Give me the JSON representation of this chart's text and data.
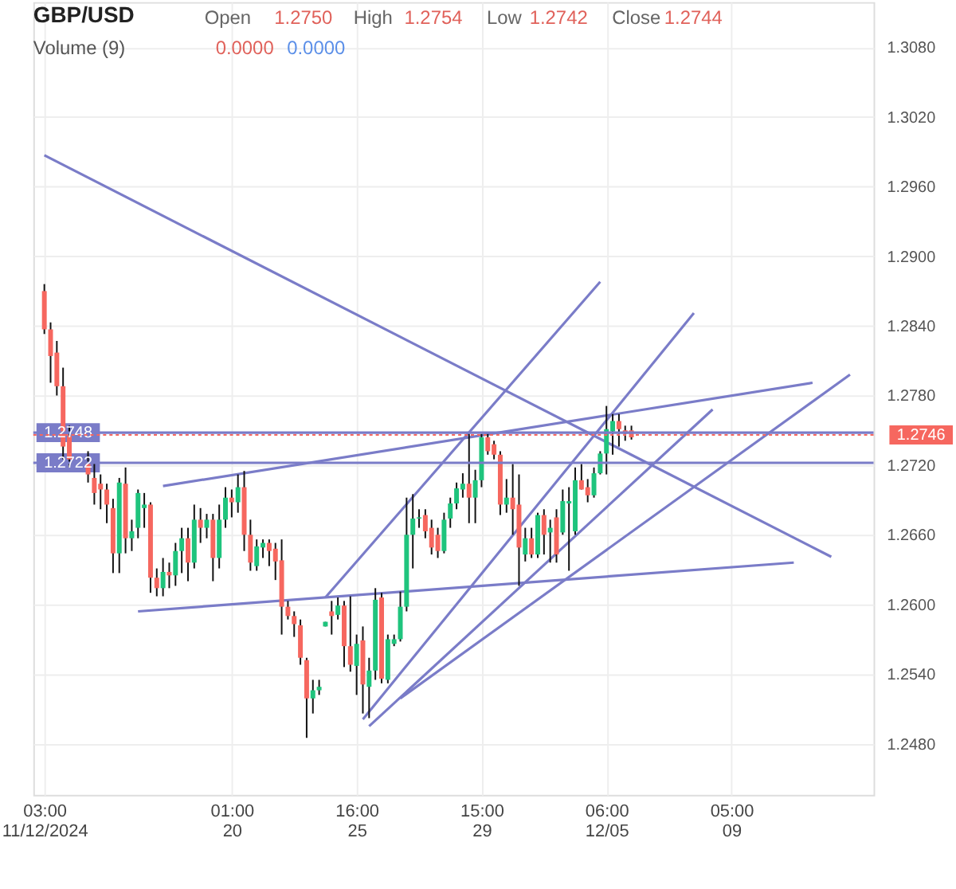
{
  "chart_data": {
    "type": "candlestick",
    "title": "GBP/USD",
    "annotations": [
      "Open",
      "1.2750",
      "High",
      "1.2754",
      "Low",
      "1.2742",
      "Close",
      "1.2744",
      "Volume (9)",
      "0.0000",
      "0.0000"
    ],
    "colors": [
      "#f6675f",
      "#f6675f",
      "#f6675f",
      "#f6675f",
      "#f6675f",
      null,
      null,
      "#f6675f",
      "#f6675f",
      "#f6675f",
      "#f6675f",
      "#f6675f",
      "#1fc47d",
      "#f6675f",
      "#1fc47d",
      "#1fc47d",
      "#1fc47d",
      "#f6675f",
      "#f6675f",
      "#1fc47d",
      "#f6675f",
      "#1fc47d",
      "#1fc47d",
      "#f6675f",
      "#1fc47d",
      "#f6675f",
      "#1fc47d",
      "#f6675f",
      "#1fc47d",
      "#1fc47d",
      "#f6675f",
      "#1fc47d",
      "#f6675f",
      "#f6675f",
      "#1fc47d",
      "#1fc47d",
      "#f6675f",
      "#f6675f",
      "#f6675f",
      "#f6675f",
      "#f6675f",
      "#f6675f",
      "#f6675f",
      "#1fc47d",
      "#1fc47d",
      "#1fc47d",
      "#f6675f",
      "#1fc47d",
      "#f6675f",
      "#f6675f",
      "#1fc47d",
      "#f6675f",
      "#1fc47d",
      "#1fc47d",
      "#f6675f",
      "#1fc47d",
      "#1fc47d",
      "#1fc47d",
      "#1fc47d",
      "#1fc47d",
      "#1fc47d",
      "#f6675f",
      "#f6675f",
      "#f6675f",
      "#1fc47d",
      "#1fc47d",
      "#1fc47d",
      "#1fc47d",
      "#f6675f",
      "#1fc47d",
      "#1fc47d",
      "#f6675f",
      "#f6675f",
      "#f6675f",
      "#1fc47d",
      "#f6675f",
      "#f6675f",
      "#1fc47d",
      "#f6675f",
      "#1fc47d",
      "#f6675f",
      "#1fc47d",
      "#f6675f",
      "#1fc47d",
      "#1fc47d",
      "#1fc47d",
      "#f6675f",
      "#f6675f",
      "#1fc47d",
      "#1fc47d",
      "#1fc47d",
      "#1fc47d",
      "#f6675f",
      "#f6675f",
      "#f6675f",
      null,
      null,
      null,
      null,
      null,
      null,
      null,
      null,
      null,
      null,
      null,
      null,
      null,
      null,
      null,
      null,
      null,
      null,
      null,
      null,
      null,
      null,
      null,
      null,
      null,
      null,
      null,
      null,
      null,
      null,
      null,
      null,
      null,
      null,
      null,
      null,
      null
    ],
    "categories": [
      "03:00 11/12/2024",
      null,
      null,
      null,
      null,
      null,
      null,
      null,
      null,
      null,
      null,
      null,
      null,
      null,
      null,
      null,
      null,
      null,
      null,
      null,
      null,
      null,
      null,
      null,
      null,
      null,
      null,
      null,
      null,
      null,
      "01:00 20",
      null,
      null,
      null,
      null,
      null,
      null,
      null,
      null,
      null,
      null,
      null,
      null,
      null,
      null,
      null,
      null,
      null,
      null,
      null,
      "16:00 25",
      null,
      null,
      null,
      null,
      null,
      null,
      null,
      null,
      null,
      null,
      null,
      null,
      null,
      null,
      null,
      null,
      null,
      null,
      null,
      "15:00 29",
      null,
      null,
      null,
      null,
      null,
      null,
      null,
      null,
      null,
      null,
      null,
      null,
      null,
      null,
      null,
      null,
      null,
      null,
      null,
      "06:00 12/05",
      null,
      null,
      null,
      null,
      null,
      null,
      null,
      null,
      null,
      null,
      null,
      null,
      null,
      null,
      null,
      null,
      null,
      null,
      null,
      "05:00 09",
      null,
      null,
      null,
      null,
      null,
      null,
      null,
      null,
      null,
      null,
      null,
      null,
      null,
      null,
      null,
      null,
      null,
      null,
      null,
      null,
      null
    ],
    "ohlc": [
      [
        1.287,
        1.2876,
        1.2833,
        1.2837
      ],
      [
        1.2837,
        1.2843,
        1.2791,
        1.2814
      ],
      [
        1.2817,
        1.2827,
        1.278,
        1.2788
      ],
      [
        1.2788,
        1.2804,
        1.2725,
        1.2736
      ],
      [
        1.2745,
        1.2754,
        1.2718,
        1.2725
      ],
      null,
      null,
      [
        1.2722,
        1.2732,
        1.2705,
        1.2712
      ],
      [
        1.2709,
        1.2722,
        1.2686,
        1.2696
      ],
      [
        1.2704,
        1.2712,
        1.2682,
        1.2699
      ],
      [
        1.2699,
        1.2704,
        1.267,
        1.2686
      ],
      [
        1.2683,
        1.2691,
        1.2627,
        1.2644
      ],
      [
        1.2644,
        1.2709,
        1.2627,
        1.2705
      ],
      [
        1.2704,
        1.2718,
        1.2644,
        1.2657
      ],
      [
        1.2657,
        1.2673,
        1.2646,
        1.2663
      ],
      [
        1.2666,
        1.2699,
        1.2657,
        1.2696
      ],
      [
        1.2683,
        1.2696,
        1.2666,
        1.2686
      ],
      [
        1.2686,
        1.2688,
        1.261,
        1.2623
      ],
      [
        1.2623,
        1.2631,
        1.2607,
        1.2614
      ],
      [
        1.2614,
        1.264,
        1.2607,
        1.2628
      ],
      [
        1.2628,
        1.2636,
        1.2614,
        1.2625
      ],
      [
        1.2625,
        1.2653,
        1.2616,
        1.2646
      ],
      [
        1.2646,
        1.2666,
        1.2627,
        1.2657
      ],
      [
        1.2657,
        1.2666,
        1.262,
        1.2636
      ],
      [
        1.2636,
        1.2686,
        1.2631,
        1.2673
      ],
      [
        1.2673,
        1.2683,
        1.2653,
        1.2666
      ],
      [
        1.2666,
        1.2678,
        1.2657,
        1.2673
      ],
      [
        1.2673,
        1.2678,
        1.262,
        1.264
      ],
      [
        1.264,
        1.2686,
        1.2631,
        1.2673
      ],
      [
        1.2673,
        1.2701,
        1.2666,
        1.2692
      ],
      [
        1.2692,
        1.2699,
        1.2675,
        1.2688
      ],
      [
        1.2688,
        1.2712,
        1.2679,
        1.2701
      ],
      [
        1.2701,
        1.2715,
        1.2646,
        1.266
      ],
      [
        1.266,
        1.2673,
        1.2629,
        1.2636
      ],
      [
        1.2633,
        1.2656,
        1.2629,
        1.265
      ],
      [
        1.2649,
        1.2656,
        1.264,
        1.2653
      ],
      [
        1.2653,
        1.2656,
        1.2633,
        1.2646
      ],
      [
        1.2648,
        1.2653,
        1.2621,
        1.2637
      ],
      [
        1.2638,
        1.2656,
        1.2574,
        1.2598
      ],
      [
        1.2598,
        1.2603,
        1.2587,
        1.259
      ],
      [
        1.259,
        1.2594,
        1.2572,
        1.2583
      ],
      [
        1.2582,
        1.2587,
        1.2548,
        1.2554
      ],
      [
        1.2552,
        1.2554,
        1.2485,
        1.2519
      ],
      [
        1.2519,
        1.2535,
        1.2506,
        1.2526
      ],
      [
        1.2526,
        1.2535,
        1.2522,
        1.2529
      ],
      [
        1.2581,
        1.2585,
        1.2581,
        1.2585
      ],
      [
        1.2594,
        1.2603,
        1.2574,
        1.259
      ],
      [
        1.2591,
        1.2606,
        1.2587,
        1.2599
      ],
      [
        1.2599,
        1.2603,
        1.2546,
        1.2564
      ],
      [
        1.2564,
        1.2607,
        1.2542,
        1.2548
      ],
      [
        1.2547,
        1.2574,
        1.2522,
        1.2566
      ],
      [
        1.2569,
        1.2581,
        1.2506,
        1.2531
      ],
      [
        1.2529,
        1.2554,
        1.2502,
        1.2543
      ],
      [
        1.2543,
        1.2614,
        1.2535,
        1.2604
      ],
      [
        1.2606,
        1.261,
        1.2532,
        1.2536
      ],
      [
        1.2535,
        1.2574,
        1.2532,
        1.257
      ],
      [
        1.2566,
        1.2574,
        1.2564,
        1.257
      ],
      [
        1.257,
        1.2611,
        1.2568,
        1.2598
      ],
      [
        1.2598,
        1.2692,
        1.2594,
        1.266
      ],
      [
        1.266,
        1.2695,
        1.2631,
        1.2674
      ],
      [
        1.2674,
        1.2682,
        1.2666,
        1.2675
      ],
      [
        1.2677,
        1.2682,
        1.2657,
        1.2663
      ],
      [
        1.2666,
        1.2673,
        1.2643,
        1.2649
      ],
      [
        1.266,
        1.2666,
        1.264,
        1.2646
      ],
      [
        1.2646,
        1.2679,
        1.2644,
        1.2673
      ],
      [
        1.2674,
        1.2692,
        1.2666,
        1.2687
      ],
      [
        1.2687,
        1.2705,
        1.2682,
        1.27
      ],
      [
        1.2699,
        1.2713,
        1.2692,
        1.2704
      ],
      [
        1.2704,
        1.2747,
        1.267,
        1.2692
      ],
      [
        1.2692,
        1.2716,
        1.267,
        1.2707
      ],
      [
        1.2707,
        1.2747,
        1.2701,
        1.2744
      ],
      [
        1.2744,
        1.2747,
        1.2729,
        1.2732
      ],
      [
        1.2738,
        1.2741,
        1.2725,
        1.2729
      ],
      [
        1.2729,
        1.2732,
        1.2677,
        1.2686
      ],
      [
        1.2686,
        1.2708,
        1.2679,
        1.2692
      ],
      [
        1.2692,
        1.2721,
        1.266,
        1.2682
      ],
      [
        1.2686,
        1.2712,
        1.2616,
        1.2649
      ],
      [
        1.2643,
        1.2666,
        1.2637,
        1.2657
      ],
      [
        1.2657,
        1.2666,
        1.264,
        1.2643
      ],
      [
        1.2643,
        1.2679,
        1.264,
        1.2677
      ],
      [
        1.2677,
        1.2682,
        1.2643,
        1.266
      ],
      [
        1.2662,
        1.2673,
        1.2636,
        1.2666
      ],
      [
        1.2675,
        1.2682,
        1.2636,
        1.2643
      ],
      [
        1.2662,
        1.2699,
        1.266,
        1.2689
      ],
      [
        1.2687,
        1.2701,
        1.2629,
        1.2689
      ],
      [
        1.2663,
        1.2718,
        1.266,
        1.2707
      ],
      [
        1.2707,
        1.2721,
        1.2699,
        1.2699
      ],
      [
        1.2701,
        1.2708,
        1.2688,
        1.2694
      ],
      [
        1.2694,
        1.2718,
        1.2692,
        1.2713
      ],
      [
        1.2713,
        1.2732,
        1.2712,
        1.273
      ],
      [
        1.273,
        1.2771,
        1.2712,
        1.2751
      ],
      [
        1.2749,
        1.2764,
        1.2729,
        1.2758
      ],
      [
        1.2758,
        1.2764,
        1.2736,
        1.2751
      ],
      [
        1.275,
        1.2754,
        1.2741,
        1.2747
      ],
      [
        1.275,
        1.2754,
        1.2742,
        1.2744
      ],
      null,
      null,
      null,
      null,
      null,
      null,
      null,
      null,
      null,
      null,
      null,
      null,
      null,
      null,
      null,
      null,
      null,
      null,
      null,
      null,
      null,
      null,
      null,
      null,
      null,
      null,
      null,
      null,
      null,
      null,
      null,
      null,
      null,
      null,
      null,
      null,
      null
    ],
    "series": [
      {
        "type": "line",
        "color": "#7a7cc8",
        "values": [
          1.2987,
          null,
          null,
          null,
          null,
          null,
          null,
          null,
          null,
          null,
          null,
          null,
          null,
          null,
          null,
          null,
          null,
          null,
          null,
          null,
          null,
          null,
          null,
          null,
          null,
          null,
          null,
          null,
          null,
          null,
          null,
          null,
          null,
          null,
          null,
          null,
          null,
          null,
          null,
          null,
          null,
          null,
          null,
          null,
          null,
          null,
          null,
          null,
          null,
          null,
          null,
          null,
          null,
          null,
          null,
          null,
          null,
          null,
          null,
          null,
          null,
          null,
          null,
          null,
          null,
          null,
          null,
          null,
          null,
          null,
          null,
          null,
          null,
          null,
          null,
          null,
          null,
          null,
          null,
          null,
          null,
          null,
          null,
          null,
          null,
          null,
          null,
          null,
          null,
          null,
          null,
          null,
          null,
          null,
          null,
          null,
          null,
          null,
          null,
          null,
          null,
          null,
          null,
          null,
          null,
          null,
          null,
          null,
          null,
          null,
          null,
          null,
          null,
          null,
          null,
          null,
          null,
          null,
          null,
          null,
          null,
          null,
          null,
          null,
          null,
          null,
          1.2641,
          null,
          null,
          null,
          null,
          null
        ]
      },
      {
        "type": "line",
        "color": "#7a7cc8",
        "values": [
          null,
          null,
          null,
          null,
          null,
          null,
          null,
          null,
          null,
          null,
          null,
          null,
          null,
          null,
          null,
          null,
          null,
          null,
          null,
          1.2702,
          null,
          null,
          null,
          null,
          null,
          null,
          null,
          null,
          null,
          null,
          null,
          null,
          null,
          null,
          null,
          null,
          null,
          null,
          null,
          null,
          null,
          null,
          null,
          null,
          null,
          null,
          null,
          null,
          null,
          null,
          null,
          null,
          null,
          null,
          null,
          null,
          null,
          null,
          null,
          null,
          null,
          null,
          null,
          null,
          null,
          null,
          null,
          null,
          null,
          null,
          null,
          null,
          null,
          null,
          null,
          null,
          null,
          null,
          null,
          null,
          null,
          null,
          null,
          null,
          null,
          null,
          null,
          null,
          null,
          null,
          null,
          null,
          null,
          null,
          null,
          null,
          null,
          null,
          null,
          null,
          null,
          null,
          null,
          null,
          null,
          null,
          null,
          null,
          null,
          null,
          null,
          null,
          null,
          null,
          null,
          null,
          null,
          null,
          null,
          null,
          null,
          null,
          null,
          1.2791,
          null,
          null,
          null,
          null,
          null,
          null,
          null,
          null
        ]
      },
      {
        "type": "line",
        "color": "#7a7cc8",
        "values": [
          null,
          null,
          null,
          null,
          null,
          null,
          null,
          null,
          null,
          null,
          null,
          null,
          null,
          null,
          null,
          1.2594,
          null,
          null,
          null,
          null,
          null,
          null,
          null,
          null,
          null,
          null,
          null,
          null,
          null,
          null,
          null,
          null,
          null,
          null,
          null,
          null,
          null,
          null,
          null,
          null,
          null,
          null,
          null,
          null,
          null,
          null,
          null,
          null,
          null,
          null,
          null,
          null,
          null,
          null,
          null,
          null,
          null,
          null,
          null,
          null,
          null,
          null,
          null,
          null,
          null,
          null,
          null,
          null,
          null,
          null,
          null,
          null,
          null,
          null,
          null,
          null,
          null,
          null,
          null,
          null,
          null,
          null,
          null,
          null,
          null,
          null,
          null,
          null,
          null,
          null,
          null,
          null,
          null,
          null,
          null,
          null,
          null,
          null,
          null,
          null,
          null,
          null,
          null,
          null,
          null,
          null,
          null,
          null,
          null,
          null,
          null,
          null,
          null,
          null,
          null,
          null,
          null,
          null,
          null,
          null,
          1.2636,
          null,
          null,
          null,
          null,
          null,
          null,
          null,
          null,
          null,
          null,
          null
        ]
      },
      {
        "type": "line",
        "color": "#7a7cc8",
        "values": [
          null,
          null,
          null,
          null,
          null,
          null,
          null,
          null,
          null,
          null,
          null,
          null,
          null,
          null,
          null,
          null,
          null,
          null,
          null,
          null,
          null,
          null,
          null,
          null,
          null,
          null,
          null,
          null,
          null,
          null,
          null,
          null,
          null,
          null,
          null,
          null,
          null,
          null,
          null,
          null,
          null,
          null,
          null,
          null,
          null,
          1.2606,
          null,
          null,
          null,
          null,
          null,
          null,
          null,
          null,
          null,
          null,
          null,
          null,
          null,
          null,
          null,
          null,
          null,
          null,
          null,
          null,
          null,
          null,
          null,
          null,
          null,
          null,
          null,
          null,
          null,
          null,
          null,
          null,
          null,
          null,
          null,
          null,
          null,
          null,
          null,
          null,
          null,
          null,
          null,
          1.2878,
          null,
          null,
          null,
          null,
          null,
          null,
          null,
          null,
          null,
          null,
          null,
          null,
          null,
          null,
          null,
          null,
          null,
          null,
          null,
          null,
          null,
          null,
          null,
          null,
          null,
          null,
          null,
          null,
          null,
          null,
          null,
          null,
          null,
          null,
          null,
          null,
          null,
          null,
          null,
          null,
          null,
          null
        ]
      },
      {
        "type": "line",
        "color": "#7a7cc8",
        "values": [
          null,
          null,
          null,
          null,
          null,
          null,
          null,
          null,
          null,
          null,
          null,
          null,
          null,
          null,
          null,
          null,
          null,
          null,
          null,
          null,
          null,
          null,
          null,
          null,
          null,
          null,
          null,
          null,
          null,
          null,
          null,
          null,
          null,
          null,
          null,
          null,
          null,
          null,
          null,
          null,
          null,
          null,
          null,
          null,
          null,
          null,
          null,
          null,
          null,
          null,
          null,
          1.2501,
          null,
          null,
          null,
          null,
          null,
          null,
          null,
          null,
          null,
          null,
          null,
          null,
          null,
          null,
          null,
          null,
          null,
          null,
          null,
          null,
          null,
          null,
          null,
          null,
          null,
          null,
          null,
          null,
          null,
          null,
          null,
          null,
          null,
          null,
          null,
          null,
          null,
          null,
          null,
          null,
          null,
          null,
          null,
          null,
          null,
          null,
          null,
          null,
          null,
          null,
          null,
          null,
          1.2851,
          null,
          null,
          null,
          null,
          null,
          null,
          null,
          null,
          null,
          null,
          null,
          null,
          null,
          null,
          null,
          null,
          null,
          null,
          null,
          null,
          null,
          null,
          null,
          null,
          null,
          null,
          null
        ]
      },
      {
        "type": "line",
        "color": "#7a7cc8",
        "values": [
          null,
          null,
          null,
          null,
          null,
          null,
          null,
          null,
          null,
          null,
          null,
          null,
          null,
          null,
          null,
          null,
          null,
          null,
          null,
          null,
          null,
          null,
          null,
          null,
          null,
          null,
          null,
          null,
          null,
          null,
          null,
          null,
          null,
          null,
          null,
          null,
          null,
          null,
          null,
          null,
          null,
          null,
          null,
          null,
          null,
          null,
          null,
          null,
          null,
          null,
          null,
          null,
          1.2495,
          null,
          null,
          null,
          null,
          null,
          null,
          null,
          null,
          null,
          null,
          null,
          null,
          null,
          null,
          null,
          null,
          null,
          null,
          null,
          null,
          null,
          null,
          null,
          null,
          null,
          null,
          null,
          null,
          null,
          null,
          null,
          null,
          null,
          null,
          null,
          null,
          null,
          null,
          null,
          null,
          null,
          null,
          null,
          null,
          null,
          null,
          null,
          null,
          null,
          null,
          null,
          null,
          null,
          null,
          1.2768,
          null,
          null,
          null,
          null,
          null,
          null,
          null,
          null,
          null,
          null,
          null,
          null,
          null,
          null,
          null,
          null,
          null,
          null,
          null,
          null,
          null,
          null,
          null,
          null
        ]
      },
      {
        "type": "line",
        "color": "#7a7cc8",
        "values": [
          null,
          null,
          null,
          null,
          null,
          null,
          null,
          null,
          null,
          null,
          null,
          null,
          null,
          null,
          null,
          null,
          null,
          null,
          null,
          null,
          null,
          null,
          null,
          null,
          null,
          null,
          null,
          null,
          null,
          null,
          null,
          null,
          null,
          null,
          null,
          null,
          null,
          null,
          null,
          null,
          null,
          null,
          null,
          null,
          null,
          null,
          null,
          null,
          null,
          null,
          null,
          null,
          null,
          null,
          null,
          null,
          null,
          1.2519,
          null,
          null,
          null,
          null,
          null,
          null,
          null,
          null,
          null,
          null,
          null,
          null,
          null,
          null,
          null,
          null,
          null,
          null,
          null,
          null,
          null,
          null,
          null,
          null,
          null,
          null,
          null,
          null,
          null,
          null,
          null,
          null,
          null,
          null,
          null,
          null,
          null,
          null,
          null,
          null,
          null,
          null,
          null,
          null,
          null,
          null,
          null,
          null,
          null,
          null,
          null,
          null,
          null,
          null,
          null,
          null,
          null,
          null,
          null,
          null,
          null,
          null,
          null,
          null,
          null,
          null,
          null,
          null,
          null,
          null,
          null,
          1.2798,
          null,
          null
        ]
      }
    ],
    "ref_lines": [
      {
        "axis": "y",
        "value": 1.2748,
        "label": "1.2748",
        "color": "#7a7cc8"
      },
      {
        "axis": "y",
        "value": 1.2722,
        "label": "1.2722",
        "color": "#7a7cc8"
      },
      {
        "axis": "y",
        "value": 1.2746,
        "label": "1.2746",
        "color": "#f6675f",
        "line_style": "dotted"
      }
    ],
    "ylim": [
      1.2436,
      1.3119
    ],
    "yticks": [
      {
        "value": 1.248,
        "label": "1.2480"
      },
      {
        "value": 1.254,
        "label": "1.2540"
      },
      {
        "value": 1.26,
        "label": "1.2600"
      },
      {
        "value": 1.266,
        "label": "1.2660"
      },
      {
        "value": 1.272,
        "label": "1.2720"
      },
      {
        "value": 1.278,
        "label": "1.2780"
      },
      {
        "value": 1.284,
        "label": "1.2840"
      },
      {
        "value": 1.29,
        "label": "1.2900"
      },
      {
        "value": 1.296,
        "label": "1.2960"
      },
      {
        "value": 1.302,
        "label": "1.3020"
      },
      {
        "value": 1.308,
        "label": "1.3080"
      }
    ],
    "grid": true
  }
}
